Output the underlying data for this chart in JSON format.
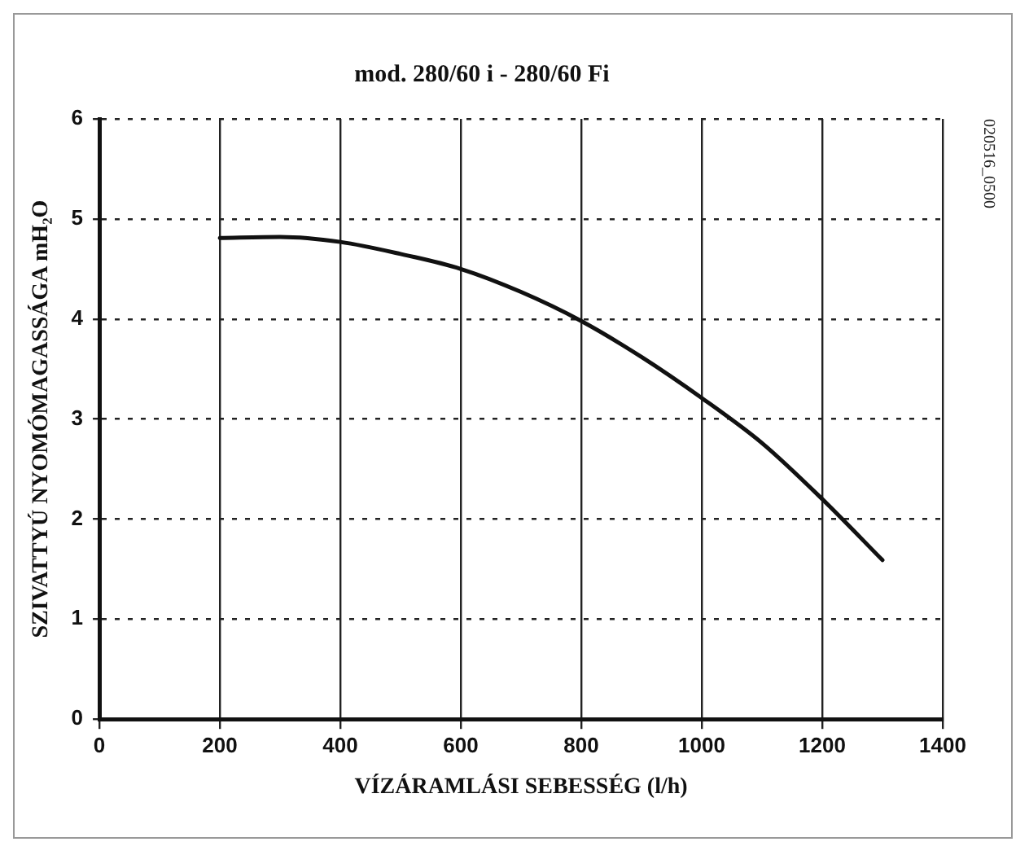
{
  "chart_data": {
    "type": "line",
    "title": "mod. 280/60 i - 280/60 Fi",
    "xlabel": "VÍZÁRAMLÁSI SEBESSÉG (l/h)",
    "ylabel": "SZIVATTYÚ NYOMÓMAGASSÁGA mH₂O",
    "annotations": [
      "020516_0500"
    ],
    "x": [
      200,
      300,
      400,
      500,
      600,
      700,
      800,
      900,
      1000,
      1100,
      1200,
      1300
    ],
    "series": [
      {
        "color": "#111111",
        "values": [
          4.81,
          4.82,
          4.77,
          4.65,
          4.5,
          4.27,
          3.98,
          3.62,
          3.21,
          2.76,
          2.2,
          1.59
        ]
      }
    ],
    "xlim": [
      0,
      1400
    ],
    "xticks": [
      0,
      200,
      400,
      600,
      800,
      1000,
      1200,
      1400
    ],
    "ylim": [
      0,
      6
    ],
    "yticks": [
      0,
      1,
      2,
      3,
      4,
      5,
      6
    ],
    "grid": true,
    "legend": false,
    "marker": "none",
    "line_style": "solid"
  }
}
